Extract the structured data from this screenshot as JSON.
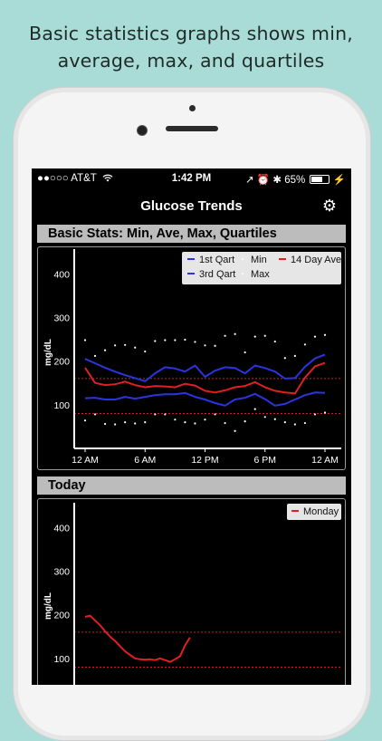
{
  "caption": {
    "line1": "Basic statistics graphs shows min,",
    "line2": "average, max, and quartiles"
  },
  "status_bar": {
    "carrier": "●●○○○ AT&T",
    "wifi_icon": "wifi-icon",
    "time": "1:42 PM",
    "indicators": "↗ ⏰ ✱",
    "battery": "65%"
  },
  "nav": {
    "title": "Glucose Trends",
    "settings_icon": "gear-icon"
  },
  "colors": {
    "quart1": "#2a35e0",
    "quart3": "#2a35e0",
    "average": "#e02020",
    "minmax": "#ffffff",
    "threshold": "#d02020",
    "section_header": "#bcbcbc"
  },
  "basic_stats": {
    "header": "Basic Stats: Min, Ave, Max, Quartiles",
    "legend": {
      "q1": "1st Qart",
      "min": "Min",
      "ave": "14 Day Ave",
      "q3": "3rd Qart",
      "max": "Max"
    }
  },
  "today": {
    "header": "Today",
    "legend": {
      "day": "Monday"
    }
  },
  "chart_data": [
    {
      "type": "line",
      "title": "Basic Stats: Min, Ave, Max, Quartiles",
      "ylabel": "mg/dL",
      "xlabel": "",
      "ylim": [
        0,
        440
      ],
      "yticks": [
        100,
        200,
        300,
        400
      ],
      "x_range_hours": [
        0,
        24
      ],
      "xticks": [
        {
          "hour": 0,
          "label": "12 AM"
        },
        {
          "hour": 6,
          "label": "6 AM"
        },
        {
          "hour": 12,
          "label": "12 PM"
        },
        {
          "hour": 18,
          "label": "6 PM"
        },
        {
          "hour": 24,
          "label": "12 AM"
        }
      ],
      "thresholds": [
        80,
        160
      ],
      "legend_position": "top-right",
      "series": [
        {
          "name": "1st Qart",
          "style": "line",
          "x": [
            0,
            1,
            2,
            3,
            4,
            5,
            6,
            7,
            8,
            9,
            10,
            11,
            12,
            13,
            14,
            15,
            16,
            17,
            18,
            19,
            20,
            21,
            22,
            23,
            24
          ],
          "values": [
            205,
            195,
            185,
            176,
            168,
            161,
            154,
            172,
            186,
            183,
            176,
            190,
            164,
            178,
            186,
            184,
            172,
            190,
            184,
            176,
            160,
            161,
            187,
            206,
            215
          ]
        },
        {
          "name": "Min",
          "style": "dots",
          "x": [
            0,
            1,
            2,
            3,
            4,
            5,
            6,
            7,
            8,
            9,
            10,
            11,
            12,
            13,
            14,
            15,
            16,
            17,
            18,
            19,
            20,
            21,
            22,
            23,
            24
          ],
          "values": [
            64,
            78,
            56,
            55,
            60,
            57,
            60,
            78,
            78,
            66,
            60,
            57,
            66,
            78,
            58,
            40,
            62,
            90,
            72,
            67,
            60,
            55,
            58,
            78,
            82
          ]
        },
        {
          "name": "14 Day Ave",
          "style": "line",
          "x": [
            0,
            1,
            2,
            3,
            4,
            5,
            6,
            7,
            8,
            9,
            10,
            11,
            12,
            13,
            14,
            15,
            16,
            17,
            18,
            19,
            20,
            21,
            22,
            23,
            24
          ],
          "values": [
            185,
            150,
            145,
            147,
            153,
            145,
            140,
            143,
            142,
            140,
            148,
            144,
            132,
            128,
            133,
            140,
            143,
            152,
            140,
            132,
            128,
            126,
            162,
            188,
            196
          ]
        },
        {
          "name": "3rd Qart",
          "style": "line",
          "x": [
            0,
            1,
            2,
            3,
            4,
            5,
            6,
            7,
            8,
            9,
            10,
            11,
            12,
            13,
            14,
            15,
            16,
            17,
            18,
            19,
            20,
            21,
            22,
            23,
            24
          ],
          "values": [
            115,
            116,
            112,
            112,
            118,
            114,
            118,
            122,
            124,
            124,
            127,
            118,
            112,
            104,
            98,
            112,
            116,
            125,
            113,
            98,
            102,
            112,
            122,
            128,
            127
          ]
        },
        {
          "name": "Max",
          "style": "dots",
          "x": [
            0,
            1,
            2,
            3,
            4,
            5,
            6,
            7,
            8,
            9,
            10,
            11,
            12,
            13,
            14,
            15,
            16,
            17,
            18,
            19,
            20,
            21,
            22,
            23,
            24
          ],
          "values": [
            248,
            212,
            225,
            236,
            237,
            231,
            222,
            246,
            248,
            248,
            249,
            244,
            236,
            235,
            258,
            262,
            220,
            256,
            258,
            245,
            207,
            212,
            238,
            256,
            260
          ]
        }
      ]
    },
    {
      "type": "line",
      "title": "Today",
      "ylabel": "mg/dL",
      "xlabel": "",
      "ylim": [
        0,
        440
      ],
      "yticks": [
        100,
        200,
        300,
        400
      ],
      "thresholds": [
        80,
        160
      ],
      "legend_position": "top-right",
      "series": [
        {
          "name": "Monday",
          "x": [
            0,
            0.5,
            1,
            1.5,
            2,
            2.5,
            3,
            3.5,
            4,
            4.5,
            5,
            5.5,
            6,
            6.5,
            7,
            7.5,
            8,
            8.5,
            9,
            9.5,
            10,
            10.5
          ],
          "values": [
            195,
            198,
            187,
            176,
            162,
            150,
            140,
            128,
            116,
            108,
            100,
            98,
            97,
            98,
            96,
            100,
            96,
            92,
            98,
            105,
            130,
            148
          ]
        }
      ]
    }
  ]
}
